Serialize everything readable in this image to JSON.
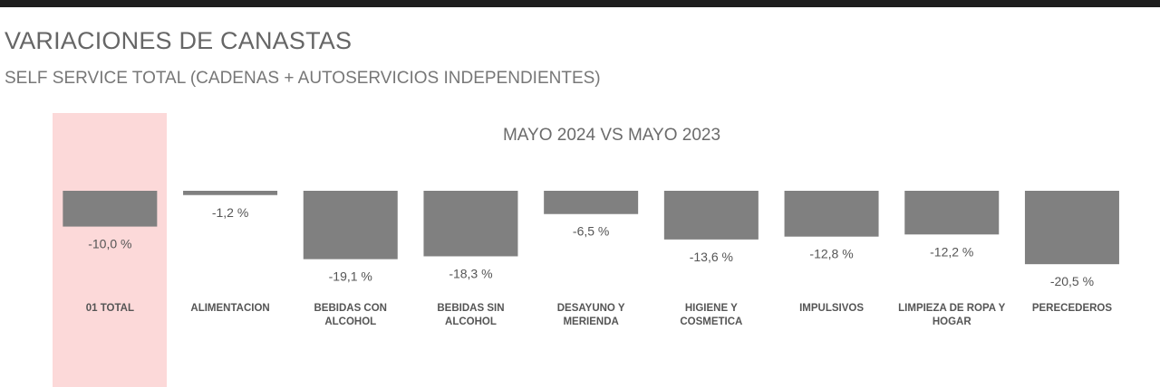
{
  "header": {
    "title": "VARIACIONES DE CANASTAS",
    "subtitle": "SELF SERVICE TOTAL (CADENAS + AUTOSERVICIOS INDEPENDIENTES)"
  },
  "chart_data": {
    "type": "bar",
    "title": "MAYO 2024 VS MAYO 2023",
    "categories": [
      [
        "01 TOTAL"
      ],
      [
        "ALIMENTACION"
      ],
      [
        "BEBIDAS CON",
        "ALCOHOL"
      ],
      [
        "BEBIDAS SIN",
        "ALCOHOL"
      ],
      [
        "DESAYUNO Y",
        "MERIENDA"
      ],
      [
        "HIGIENE Y",
        "COSMETICA"
      ],
      [
        "IMPULSIVOS"
      ],
      [
        "LIMPIEZA DE ROPA Y",
        "HOGAR"
      ],
      [
        "PERECEDEROS"
      ]
    ],
    "values": [
      -10.0,
      -1.2,
      -19.1,
      -18.3,
      -6.5,
      -13.6,
      -12.8,
      -12.2,
      -20.5
    ],
    "value_labels": [
      "-10,0 %",
      "-1,2 %",
      "-19,1 %",
      "-18,3 %",
      "-6,5 %",
      "-13,6 %",
      "-12,8 %",
      "-12,2 %",
      "-20,5 %"
    ],
    "highlight_index": 0,
    "colors": {
      "bar": "#808080",
      "highlight": "#fcd9d9",
      "label": "#555555",
      "category": "#555555",
      "title": "#6b6b6b"
    }
  }
}
